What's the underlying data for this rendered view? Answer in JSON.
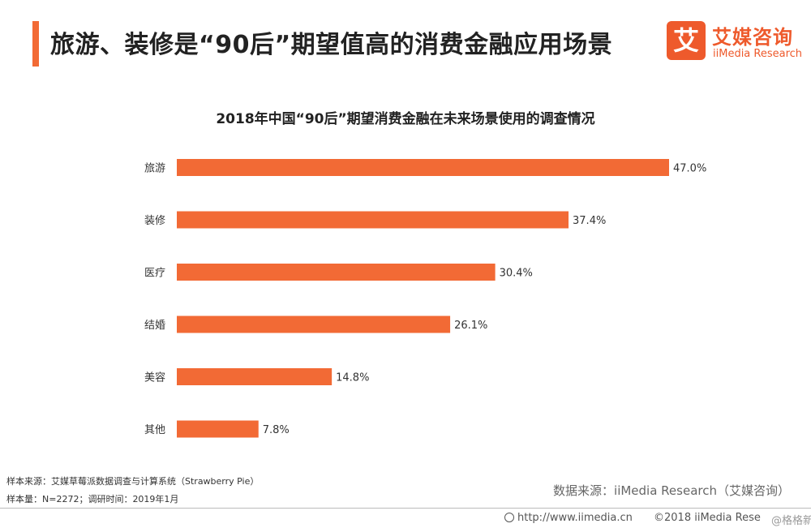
{
  "header": {
    "title": "旅游、装修是“90后”期望值高的消费金融应用场景",
    "logo_glyph": "艾",
    "logo_cn": "艾媒咨询",
    "logo_en": "iiMedia Research",
    "accent_color": "#f26a35"
  },
  "chart_data": {
    "type": "bar",
    "orientation": "horizontal",
    "title": "2018年中国“90后”期望消费金融在未来场景使用的调查情况",
    "categories": [
      "旅游",
      "装修",
      "医疗",
      "结婚",
      "美容",
      "其他"
    ],
    "values": [
      47.0,
      37.4,
      30.4,
      26.1,
      14.8,
      7.8
    ],
    "value_labels": [
      "47.0%",
      "37.4%",
      "30.4%",
      "26.1%",
      "14.8%",
      "7.8%"
    ],
    "unit": "%",
    "bar_color": "#f26a35",
    "grid": false,
    "xlim": [
      0,
      47.0
    ]
  },
  "footer": {
    "sample_source": "样本来源：艾媒草莓派数据调查与计算系统（Strawberry Pie）",
    "sample_size": "样本量：N=2272；调研时间：2019年1月",
    "data_source": "数据来源：iiMedia Research（艾媒咨询）",
    "url": "http://www.iimedia.cn",
    "copyright": "©2018  iiMedia Rese",
    "watermark": "@格格新汇"
  }
}
